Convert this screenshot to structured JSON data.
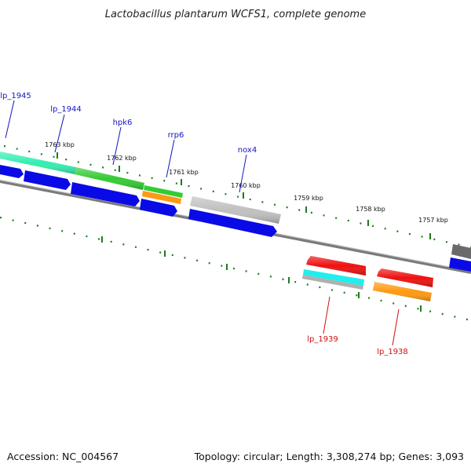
{
  "title": "Lactobacillus plantarum WCFS1, complete genome",
  "accession": "Accession: NC_004567",
  "summary": "Topology: circular; Length: 3,308,274 bp; Genes: 3,093",
  "ticks": [
    "1763 kbp",
    "1762 kbp",
    "1761 kbp",
    "1760 kbp",
    "1759 kbp",
    "1758 kbp",
    "1757 kbp"
  ],
  "genes_forward": [
    "lp_1945",
    "lp_1944",
    "hpk6",
    "rrp6",
    "nox4"
  ],
  "genes_reverse": [
    "lp_1939",
    "lp_1938"
  ],
  "colors": {
    "forward_label": "#1515bf",
    "reverse_label": "#cc1111",
    "backbone": "#7a7a7a",
    "tick": "#1f7a1f",
    "cds": "#0a0ae6",
    "green": "#33cc33",
    "aqua": "#33eeb0",
    "gray": "#c0c0c0",
    "orange": "#ff9911",
    "red": "#ee1111",
    "cyan": "#22eeee"
  }
}
